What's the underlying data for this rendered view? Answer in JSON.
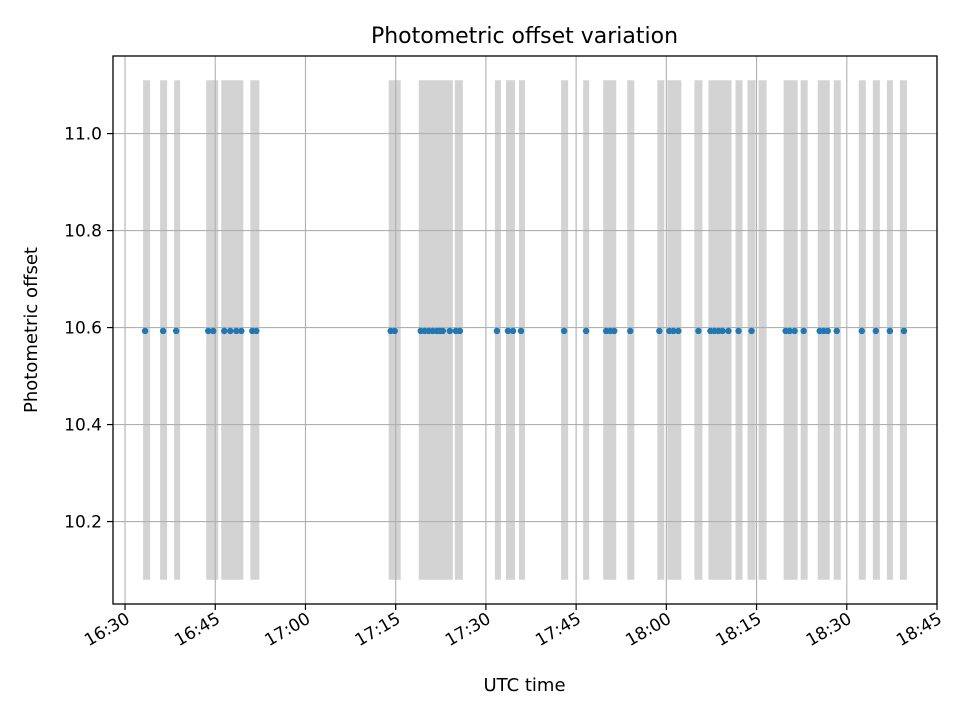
{
  "chart_data": {
    "type": "scatter",
    "title": "Photometric offset variation",
    "xlabel": "UTC time",
    "ylabel": "Photometric offset",
    "x_axis": {
      "kind": "time",
      "range": [
        "16:28",
        "18:45"
      ],
      "ticks": [
        "16:30",
        "16:45",
        "17:00",
        "17:15",
        "17:30",
        "17:45",
        "18:00",
        "18:15",
        "18:30",
        "18:45"
      ]
    },
    "y_axis": {
      "range": [
        10.03,
        11.16
      ],
      "ticks": [
        10.2,
        10.4,
        10.6,
        10.8,
        11.0
      ],
      "tick_labels": [
        "10.2",
        "10.4",
        "10.6",
        "10.8",
        "11.0"
      ]
    },
    "grid": true,
    "colors": {
      "points": "#1f77b4",
      "bands": "#d3d3d3",
      "grid": "#b0b0b0"
    },
    "exposure_bands_ymin": 10.08,
    "exposure_bands_ymax": 11.11,
    "exposure_bands": [
      [
        "16:33:00",
        "16:34:10"
      ],
      [
        "16:35:50",
        "16:37:00"
      ],
      [
        "16:38:10",
        "16:39:10"
      ],
      [
        "16:43:30",
        "16:45:30"
      ],
      [
        "16:46:00",
        "16:49:40"
      ],
      [
        "16:50:50",
        "16:52:20"
      ],
      [
        "17:13:50",
        "17:15:50"
      ],
      [
        "17:18:50",
        "17:24:30"
      ],
      [
        "17:24:50",
        "17:26:10"
      ],
      [
        "17:31:30",
        "17:32:30"
      ],
      [
        "17:33:20",
        "17:34:50"
      ],
      [
        "17:35:30",
        "17:36:30"
      ],
      [
        "17:42:30",
        "17:43:40"
      ],
      [
        "17:46:10",
        "17:47:10"
      ],
      [
        "17:49:30",
        "17:51:40"
      ],
      [
        "17:53:30",
        "17:54:40"
      ],
      [
        "17:58:30",
        "17:59:40"
      ],
      [
        "18:00:10",
        "18:02:30"
      ],
      [
        "18:04:40",
        "18:06:00"
      ],
      [
        "18:07:00",
        "18:10:50"
      ],
      [
        "18:11:30",
        "18:12:40"
      ],
      [
        "18:13:30",
        "18:14:50"
      ],
      [
        "18:15:20",
        "18:16:40"
      ],
      [
        "18:19:30",
        "18:21:50"
      ],
      [
        "18:22:20",
        "18:23:30"
      ],
      [
        "18:25:10",
        "18:27:10"
      ],
      [
        "18:27:50",
        "18:29:00"
      ],
      [
        "18:32:00",
        "18:33:10"
      ],
      [
        "18:34:20",
        "18:35:30"
      ],
      [
        "18:36:40",
        "18:37:40"
      ],
      [
        "18:38:50",
        "18:40:00"
      ]
    ],
    "series": [
      {
        "x": [
          "16:33:20",
          "16:36:20",
          "16:38:30",
          "16:43:50",
          "16:44:40",
          "16:46:30",
          "16:47:30",
          "16:48:30",
          "16:49:20",
          "16:51:10",
          "16:51:50",
          "17:14:10",
          "17:14:50",
          "17:19:10",
          "17:19:50",
          "17:20:30",
          "17:21:10",
          "17:21:50",
          "17:22:20",
          "17:22:50",
          "17:24:00",
          "17:25:00",
          "17:25:40",
          "17:31:50",
          "17:33:40",
          "17:34:30",
          "17:35:50",
          "17:43:00",
          "17:46:40",
          "17:50:00",
          "17:50:40",
          "17:51:20",
          "17:54:00",
          "17:58:50",
          "18:00:30",
          "18:01:10",
          "18:02:00",
          "18:05:20",
          "18:07:20",
          "18:08:00",
          "18:08:40",
          "18:09:20",
          "18:10:20",
          "18:12:00",
          "18:14:10",
          "18:19:50",
          "18:20:30",
          "18:21:20",
          "18:22:50",
          "18:25:30",
          "18:26:10",
          "18:26:50",
          "18:28:20",
          "18:32:30",
          "18:34:50",
          "18:37:10",
          "18:39:30"
        ],
        "y": [
          10.593,
          10.593,
          10.593,
          10.593,
          10.593,
          10.593,
          10.593,
          10.593,
          10.593,
          10.593,
          10.593,
          10.593,
          10.593,
          10.593,
          10.593,
          10.593,
          10.593,
          10.593,
          10.593,
          10.593,
          10.593,
          10.593,
          10.593,
          10.593,
          10.593,
          10.593,
          10.593,
          10.593,
          10.593,
          10.593,
          10.593,
          10.593,
          10.593,
          10.593,
          10.593,
          10.593,
          10.593,
          10.593,
          10.593,
          10.593,
          10.593,
          10.593,
          10.593,
          10.593,
          10.593,
          10.593,
          10.593,
          10.593,
          10.593,
          10.593,
          10.593,
          10.593,
          10.593,
          10.593,
          10.593,
          10.593,
          10.593
        ]
      }
    ]
  }
}
